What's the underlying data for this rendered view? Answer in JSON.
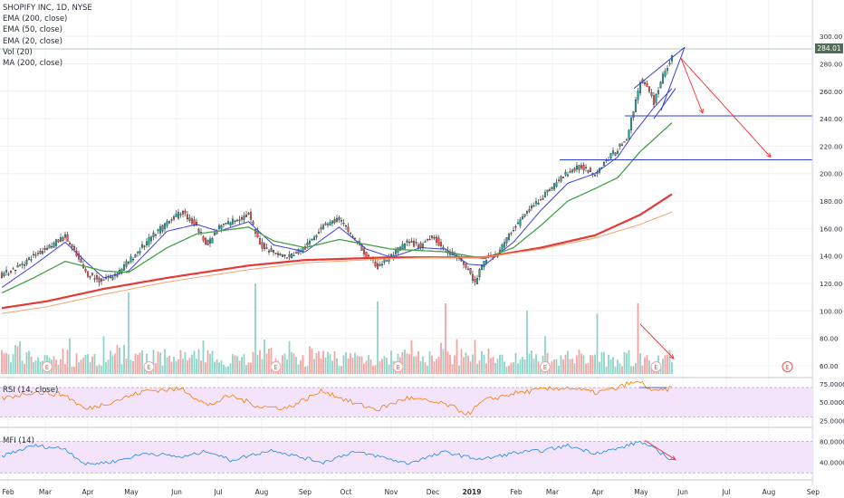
{
  "legend": {
    "title": "SHOPIFY INC, 1D, NYSE",
    "ema200": "EMA (200, close)",
    "ema50": "EMA (50, close)",
    "ema20": "EMA (20, close)",
    "vol": "Vol (20)",
    "ma200": "MA (200, close)"
  },
  "indicators": {
    "rsi": "RSI (14, close)",
    "mfi": "MFI (14)"
  },
  "last_price": "284.01",
  "earnings_marker": "E",
  "colors": {
    "up": "#26a69a",
    "down": "#ef5350",
    "ema200": "#e53935",
    "ema50": "#43a047",
    "ema20": "#3f3fd9",
    "ma200": "#f6a56e",
    "rsi": "#f57c00",
    "mfi": "#1e88e5",
    "band": "#f3e4fb",
    "drawing": "#2f3fd6",
    "arrow": "#ff2b2b"
  },
  "chart_data": [
    {
      "type": "candlestick",
      "title": "SHOPIFY INC, 1D, NYSE",
      "x_ticks": [
        "Feb",
        "Mar",
        "Apr",
        "May",
        "Jun",
        "Jul",
        "Aug",
        "Sep",
        "Oct",
        "Nov",
        "Dec",
        "2019",
        "Feb",
        "Mar",
        "Apr",
        "May",
        "Jun",
        "Jul",
        "Aug",
        "Sep"
      ],
      "y_ticks": [
        "300.00",
        "280.00",
        "260.00",
        "240.00",
        "220.00",
        "200.00",
        "180.00",
        "160.00",
        "140.00",
        "120.00",
        "100.00",
        "80.00",
        "60.00"
      ],
      "ylim": [
        54,
        308
      ],
      "grid": true,
      "close_keyframes": [
        [
          0,
          126
        ],
        [
          7,
          132
        ],
        [
          14,
          140
        ],
        [
          23,
          149
        ],
        [
          28,
          154
        ],
        [
          32,
          143
        ],
        [
          37,
          128
        ],
        [
          43,
          122
        ],
        [
          50,
          126
        ],
        [
          56,
          136
        ],
        [
          64,
          150
        ],
        [
          73,
          165
        ],
        [
          80,
          172
        ],
        [
          86,
          161
        ],
        [
          91,
          148
        ],
        [
          96,
          161
        ],
        [
          101,
          165
        ],
        [
          109,
          170
        ],
        [
          114,
          148
        ],
        [
          120,
          143
        ],
        [
          126,
          139
        ],
        [
          134,
          146
        ],
        [
          142,
          163
        ],
        [
          149,
          167
        ],
        [
          155,
          154
        ],
        [
          161,
          140
        ],
        [
          166,
          132
        ],
        [
          172,
          140
        ],
        [
          179,
          150
        ],
        [
          185,
          147
        ],
        [
          190,
          155
        ],
        [
          196,
          143
        ],
        [
          201,
          140
        ],
        [
          206,
          130
        ],
        [
          209,
          120
        ],
        [
          213,
          137
        ],
        [
          219,
          142
        ],
        [
          226,
          160
        ],
        [
          232,
          172
        ],
        [
          238,
          182
        ],
        [
          244,
          192
        ],
        [
          250,
          201
        ],
        [
          256,
          205
        ],
        [
          262,
          200
        ],
        [
          267,
          210
        ],
        [
          272,
          218
        ],
        [
          276,
          226
        ],
        [
          279,
          246
        ],
        [
          282,
          268
        ],
        [
          285,
          262
        ],
        [
          288,
          252
        ],
        [
          292,
          272
        ],
        [
          296,
          284
        ]
      ],
      "series": [
        {
          "name": "EMA (20, close)",
          "keyframes": [
            [
              0,
              117
            ],
            [
              14,
              133
            ],
            [
              28,
              150
            ],
            [
              37,
              136
            ],
            [
              45,
              124
            ],
            [
              56,
              129
            ],
            [
              73,
              158
            ],
            [
              86,
              163
            ],
            [
              96,
              158
            ],
            [
              109,
              165
            ],
            [
              120,
              148
            ],
            [
              134,
              143
            ],
            [
              149,
              161
            ],
            [
              161,
              145
            ],
            [
              172,
              139
            ],
            [
              185,
              146
            ],
            [
              196,
              145
            ],
            [
              206,
              134
            ],
            [
              213,
              133
            ],
            [
              226,
              150
            ],
            [
              238,
              173
            ],
            [
              250,
              193
            ],
            [
              262,
              200
            ],
            [
              272,
              212
            ],
            [
              279,
              229
            ],
            [
              288,
              248
            ],
            [
              296,
              262
            ]
          ]
        },
        {
          "name": "EMA (50, close)",
          "keyframes": [
            [
              0,
              113
            ],
            [
              14,
              124
            ],
            [
              28,
              136
            ],
            [
              45,
              129
            ],
            [
              56,
              128
            ],
            [
              73,
              146
            ],
            [
              86,
              156
            ],
            [
              109,
              161
            ],
            [
              120,
              151
            ],
            [
              134,
              146
            ],
            [
              149,
              152
            ],
            [
              172,
              145
            ],
            [
              196,
              143
            ],
            [
              213,
              138
            ],
            [
              226,
              146
            ],
            [
              238,
              162
            ],
            [
              250,
              180
            ],
            [
              262,
              189
            ],
            [
              272,
              197
            ],
            [
              282,
              216
            ],
            [
              296,
              237
            ]
          ]
        },
        {
          "name": "EMA (200, close)",
          "keyframes": [
            [
              0,
              102
            ],
            [
              20,
              107
            ],
            [
              45,
              116
            ],
            [
              73,
              124
            ],
            [
              109,
              133
            ],
            [
              134,
              137
            ],
            [
              172,
              139
            ],
            [
              196,
              139
            ],
            [
              213,
              139
            ],
            [
              238,
              146
            ],
            [
              262,
              155
            ],
            [
              282,
              170
            ],
            [
              296,
              185
            ]
          ]
        },
        {
          "name": "MA (200, close)",
          "keyframes": [
            [
              0,
              98
            ],
            [
              20,
              103
            ],
            [
              45,
              112
            ],
            [
              73,
              121
            ],
            [
              109,
              130
            ],
            [
              134,
              135
            ],
            [
              172,
              138
            ],
            [
              196,
              139
            ],
            [
              213,
              139
            ],
            [
              238,
              145
            ],
            [
              262,
              153
            ],
            [
              282,
              163
            ],
            [
              296,
              172
            ]
          ]
        }
      ]
    },
    {
      "type": "line",
      "name": "RSI (14, close)",
      "ylabel": "",
      "y_ticks": [
        "75.0000",
        "50.0000",
        "25.0000"
      ],
      "ylim": [
        18,
        80
      ],
      "band": [
        30,
        70
      ],
      "keyframes": [
        [
          0,
          55
        ],
        [
          14,
          64
        ],
        [
          28,
          60
        ],
        [
          37,
          40
        ],
        [
          50,
          52
        ],
        [
          64,
          66
        ],
        [
          80,
          68
        ],
        [
          91,
          45
        ],
        [
          101,
          59
        ],
        [
          114,
          44
        ],
        [
          126,
          42
        ],
        [
          142,
          66
        ],
        [
          155,
          49
        ],
        [
          166,
          40
        ],
        [
          179,
          56
        ],
        [
          196,
          47
        ],
        [
          206,
          34
        ],
        [
          213,
          52
        ],
        [
          226,
          62
        ],
        [
          238,
          67
        ],
        [
          250,
          70
        ],
        [
          262,
          63
        ],
        [
          272,
          69
        ],
        [
          276,
          75
        ],
        [
          282,
          78
        ],
        [
          288,
          64
        ],
        [
          296,
          69
        ]
      ]
    },
    {
      "type": "line",
      "name": "MFI (14)",
      "ylabel": "",
      "y_ticks": [
        "80.0000",
        "40.0000"
      ],
      "ylim": [
        10,
        100
      ],
      "band": [
        20,
        80
      ],
      "keyframes": [
        [
          0,
          52
        ],
        [
          14,
          72
        ],
        [
          28,
          66
        ],
        [
          37,
          36
        ],
        [
          50,
          42
        ],
        [
          64,
          58
        ],
        [
          80,
          50
        ],
        [
          91,
          62
        ],
        [
          101,
          44
        ],
        [
          114,
          58
        ],
        [
          120,
          64
        ],
        [
          126,
          56
        ],
        [
          142,
          40
        ],
        [
          155,
          60
        ],
        [
          166,
          52
        ],
        [
          179,
          38
        ],
        [
          196,
          60
        ],
        [
          206,
          50
        ],
        [
          213,
          46
        ],
        [
          226,
          58
        ],
        [
          238,
          62
        ],
        [
          250,
          72
        ],
        [
          262,
          58
        ],
        [
          272,
          66
        ],
        [
          279,
          76
        ],
        [
          282,
          80
        ],
        [
          288,
          66
        ],
        [
          296,
          45
        ]
      ]
    }
  ]
}
